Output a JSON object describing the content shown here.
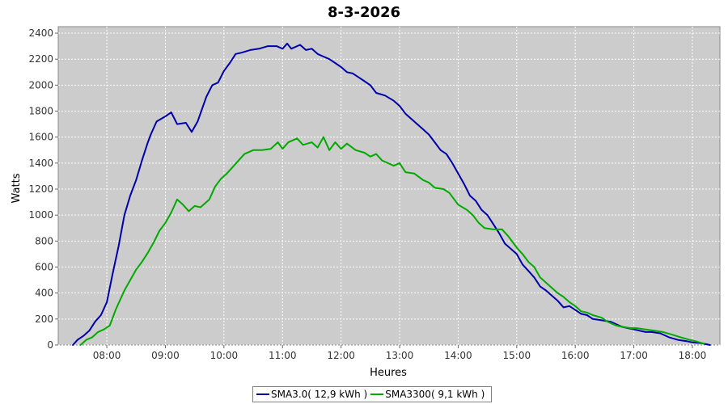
{
  "chart_data": {
    "type": "line",
    "title": "8-3-2026",
    "xlabel": "Heures",
    "ylabel": "Watts",
    "xlim": [
      7.17,
      18.47
    ],
    "ylim": [
      0,
      2450
    ],
    "xticks": [
      "08:00",
      "09:00",
      "10:00",
      "11:00",
      "12:00",
      "13:00",
      "14:00",
      "15:00",
      "16:00",
      "17:00",
      "18:00"
    ],
    "yticks": [
      "0",
      "200",
      "400",
      "600",
      "800",
      "1000",
      "1200",
      "1400",
      "1600",
      "1800",
      "2000",
      "2200",
      "2400"
    ],
    "grid": true,
    "legend_position": "bottom-center",
    "series": [
      {
        "name": "SMA3.0( 12,9 kWh )",
        "color": "#0000aa",
        "points": [
          [
            7.42,
            0
          ],
          [
            7.5,
            40
          ],
          [
            7.6,
            70
          ],
          [
            7.7,
            110
          ],
          [
            7.8,
            180
          ],
          [
            7.9,
            230
          ],
          [
            8.0,
            330
          ],
          [
            8.1,
            550
          ],
          [
            8.2,
            760
          ],
          [
            8.3,
            1000
          ],
          [
            8.4,
            1150
          ],
          [
            8.5,
            1270
          ],
          [
            8.6,
            1420
          ],
          [
            8.7,
            1560
          ],
          [
            8.75,
            1620
          ],
          [
            8.85,
            1720
          ],
          [
            9.0,
            1760
          ],
          [
            9.1,
            1790
          ],
          [
            9.2,
            1700
          ],
          [
            9.35,
            1710
          ],
          [
            9.45,
            1640
          ],
          [
            9.55,
            1720
          ],
          [
            9.7,
            1910
          ],
          [
            9.8,
            2000
          ],
          [
            9.9,
            2020
          ],
          [
            10.0,
            2110
          ],
          [
            10.1,
            2170
          ],
          [
            10.2,
            2240
          ],
          [
            10.3,
            2250
          ],
          [
            10.45,
            2270
          ],
          [
            10.6,
            2280
          ],
          [
            10.75,
            2300
          ],
          [
            10.9,
            2300
          ],
          [
            11.0,
            2280
          ],
          [
            11.08,
            2320
          ],
          [
            11.15,
            2280
          ],
          [
            11.3,
            2310
          ],
          [
            11.4,
            2270
          ],
          [
            11.5,
            2280
          ],
          [
            11.6,
            2240
          ],
          [
            11.7,
            2220
          ],
          [
            11.8,
            2200
          ],
          [
            11.9,
            2170
          ],
          [
            12.0,
            2140
          ],
          [
            12.1,
            2100
          ],
          [
            12.2,
            2090
          ],
          [
            12.3,
            2060
          ],
          [
            12.4,
            2030
          ],
          [
            12.5,
            2000
          ],
          [
            12.6,
            1940
          ],
          [
            12.75,
            1920
          ],
          [
            12.9,
            1880
          ],
          [
            13.0,
            1840
          ],
          [
            13.1,
            1780
          ],
          [
            13.25,
            1720
          ],
          [
            13.4,
            1660
          ],
          [
            13.5,
            1620
          ],
          [
            13.6,
            1560
          ],
          [
            13.7,
            1500
          ],
          [
            13.8,
            1470
          ],
          [
            13.9,
            1400
          ],
          [
            14.0,
            1320
          ],
          [
            14.1,
            1240
          ],
          [
            14.2,
            1150
          ],
          [
            14.3,
            1110
          ],
          [
            14.4,
            1040
          ],
          [
            14.5,
            1000
          ],
          [
            14.6,
            930
          ],
          [
            14.7,
            860
          ],
          [
            14.8,
            780
          ],
          [
            14.9,
            740
          ],
          [
            15.0,
            700
          ],
          [
            15.1,
            620
          ],
          [
            15.2,
            570
          ],
          [
            15.3,
            520
          ],
          [
            15.4,
            450
          ],
          [
            15.5,
            420
          ],
          [
            15.6,
            380
          ],
          [
            15.7,
            340
          ],
          [
            15.8,
            290
          ],
          [
            15.9,
            300
          ],
          [
            16.0,
            270
          ],
          [
            16.1,
            240
          ],
          [
            16.2,
            230
          ],
          [
            16.3,
            200
          ],
          [
            16.45,
            190
          ],
          [
            16.6,
            180
          ],
          [
            16.7,
            160
          ],
          [
            16.8,
            140
          ],
          [
            16.9,
            130
          ],
          [
            17.0,
            120
          ],
          [
            17.1,
            110
          ],
          [
            17.2,
            100
          ],
          [
            17.3,
            100
          ],
          [
            17.45,
            90
          ],
          [
            17.6,
            60
          ],
          [
            17.75,
            40
          ],
          [
            17.9,
            30
          ],
          [
            18.0,
            20
          ],
          [
            18.15,
            15
          ],
          [
            18.3,
            0
          ]
        ]
      },
      {
        "name": "SMA3300( 9,1 kWh )",
        "color": "#00aa00",
        "points": [
          [
            7.55,
            0
          ],
          [
            7.65,
            40
          ],
          [
            7.75,
            60
          ],
          [
            7.85,
            100
          ],
          [
            7.95,
            120
          ],
          [
            8.05,
            150
          ],
          [
            8.15,
            270
          ],
          [
            8.3,
            420
          ],
          [
            8.4,
            500
          ],
          [
            8.5,
            580
          ],
          [
            8.6,
            640
          ],
          [
            8.7,
            710
          ],
          [
            8.8,
            790
          ],
          [
            8.9,
            880
          ],
          [
            9.0,
            940
          ],
          [
            9.1,
            1020
          ],
          [
            9.2,
            1120
          ],
          [
            9.3,
            1080
          ],
          [
            9.4,
            1030
          ],
          [
            9.5,
            1070
          ],
          [
            9.6,
            1060
          ],
          [
            9.75,
            1120
          ],
          [
            9.85,
            1220
          ],
          [
            9.95,
            1280
          ],
          [
            10.05,
            1320
          ],
          [
            10.15,
            1370
          ],
          [
            10.25,
            1420
          ],
          [
            10.35,
            1470
          ],
          [
            10.5,
            1500
          ],
          [
            10.65,
            1500
          ],
          [
            10.8,
            1510
          ],
          [
            10.92,
            1560
          ],
          [
            11.0,
            1510
          ],
          [
            11.1,
            1560
          ],
          [
            11.25,
            1590
          ],
          [
            11.35,
            1540
          ],
          [
            11.5,
            1560
          ],
          [
            11.6,
            1520
          ],
          [
            11.7,
            1600
          ],
          [
            11.8,
            1500
          ],
          [
            11.9,
            1560
          ],
          [
            12.0,
            1510
          ],
          [
            12.1,
            1550
          ],
          [
            12.25,
            1500
          ],
          [
            12.4,
            1480
          ],
          [
            12.5,
            1450
          ],
          [
            12.6,
            1470
          ],
          [
            12.7,
            1420
          ],
          [
            12.8,
            1400
          ],
          [
            12.9,
            1380
          ],
          [
            13.0,
            1400
          ],
          [
            13.1,
            1330
          ],
          [
            13.25,
            1320
          ],
          [
            13.4,
            1270
          ],
          [
            13.5,
            1250
          ],
          [
            13.6,
            1210
          ],
          [
            13.75,
            1200
          ],
          [
            13.85,
            1170
          ],
          [
            14.0,
            1080
          ],
          [
            14.15,
            1040
          ],
          [
            14.25,
            1000
          ],
          [
            14.35,
            940
          ],
          [
            14.45,
            900
          ],
          [
            14.6,
            890
          ],
          [
            14.75,
            890
          ],
          [
            14.85,
            840
          ],
          [
            15.0,
            750
          ],
          [
            15.1,
            700
          ],
          [
            15.2,
            640
          ],
          [
            15.3,
            600
          ],
          [
            15.4,
            520
          ],
          [
            15.5,
            480
          ],
          [
            15.6,
            440
          ],
          [
            15.7,
            400
          ],
          [
            15.8,
            370
          ],
          [
            15.9,
            330
          ],
          [
            16.0,
            300
          ],
          [
            16.1,
            260
          ],
          [
            16.2,
            250
          ],
          [
            16.3,
            230
          ],
          [
            16.45,
            210
          ],
          [
            16.55,
            180
          ],
          [
            16.7,
            150
          ],
          [
            16.8,
            140
          ],
          [
            16.95,
            130
          ],
          [
            17.05,
            130
          ],
          [
            17.2,
            120
          ],
          [
            17.35,
            110
          ],
          [
            17.5,
            100
          ],
          [
            17.65,
            80
          ],
          [
            17.8,
            60
          ],
          [
            17.95,
            40
          ],
          [
            18.05,
            30
          ],
          [
            18.2,
            10
          ]
        ]
      }
    ]
  }
}
